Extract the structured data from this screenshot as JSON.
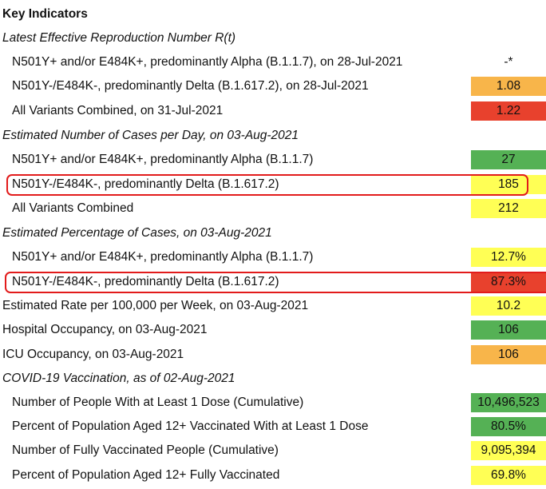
{
  "header": "Key Indicators",
  "sections": {
    "rt": {
      "title": "Latest Effective Reproduction Number R(t)",
      "rows": [
        {
          "label": "N501Y+ and/or E484K+, predominantly Alpha (B.1.1.7), on 28-Jul-2021",
          "value": "-*",
          "color": "none"
        },
        {
          "label": "N501Y-/E484K-, predominantly Delta (B.1.617.2), on 28-Jul-2021",
          "value": "1.08",
          "color": "orange"
        },
        {
          "label": "All Variants Combined, on 31-Jul-2021",
          "value": "1.22",
          "color": "red"
        }
      ]
    },
    "cases": {
      "title": "Estimated Number of Cases per Day, on 03-Aug-2021",
      "rows": [
        {
          "label": "N501Y+ and/or E484K+, predominantly Alpha (B.1.1.7)",
          "value": "27",
          "color": "green"
        },
        {
          "label": "N501Y-/E484K-, predominantly Delta (B.1.617.2)",
          "value": "185",
          "color": "yellow"
        },
        {
          "label": "All Variants Combined",
          "value": "212",
          "color": "yellow"
        }
      ]
    },
    "pct": {
      "title": "Estimated Percentage of Cases, on 03-Aug-2021",
      "rows": [
        {
          "label": "N501Y+ and/or E484K+, predominantly Alpha (B.1.1.7)",
          "value": "12.7%",
          "color": "yellow"
        },
        {
          "label": "N501Y-/E484K-, predominantly Delta (B.1.617.2)",
          "value": "87.3%",
          "color": "red"
        }
      ]
    },
    "other": {
      "rows": [
        {
          "label": "Estimated Rate per 100,000 per Week, on 03-Aug-2021",
          "value": "10.2",
          "color": "yellow"
        },
        {
          "label": "Hospital Occupancy, on 03-Aug-2021",
          "value": "106",
          "color": "green"
        },
        {
          "label": "ICU Occupancy, on 03-Aug-2021",
          "value": "106",
          "color": "orange"
        }
      ]
    },
    "vax": {
      "title": "COVID-19 Vaccination, as of 02-Aug-2021",
      "rows": [
        {
          "label": "Number of People With at Least 1 Dose (Cumulative)",
          "value": "10,496,523",
          "color": "green"
        },
        {
          "label": "Percent of Population Aged 12+ Vaccinated With at Least 1 Dose",
          "value": "80.5%",
          "color": "green"
        },
        {
          "label": "Number of Fully Vaccinated People (Cumulative)",
          "value": "9,095,394",
          "color": "yellow"
        },
        {
          "label": "Percent of Population Aged 12+ Fully Vaccinated",
          "value": "69.8%",
          "color": "yellow"
        }
      ]
    }
  }
}
